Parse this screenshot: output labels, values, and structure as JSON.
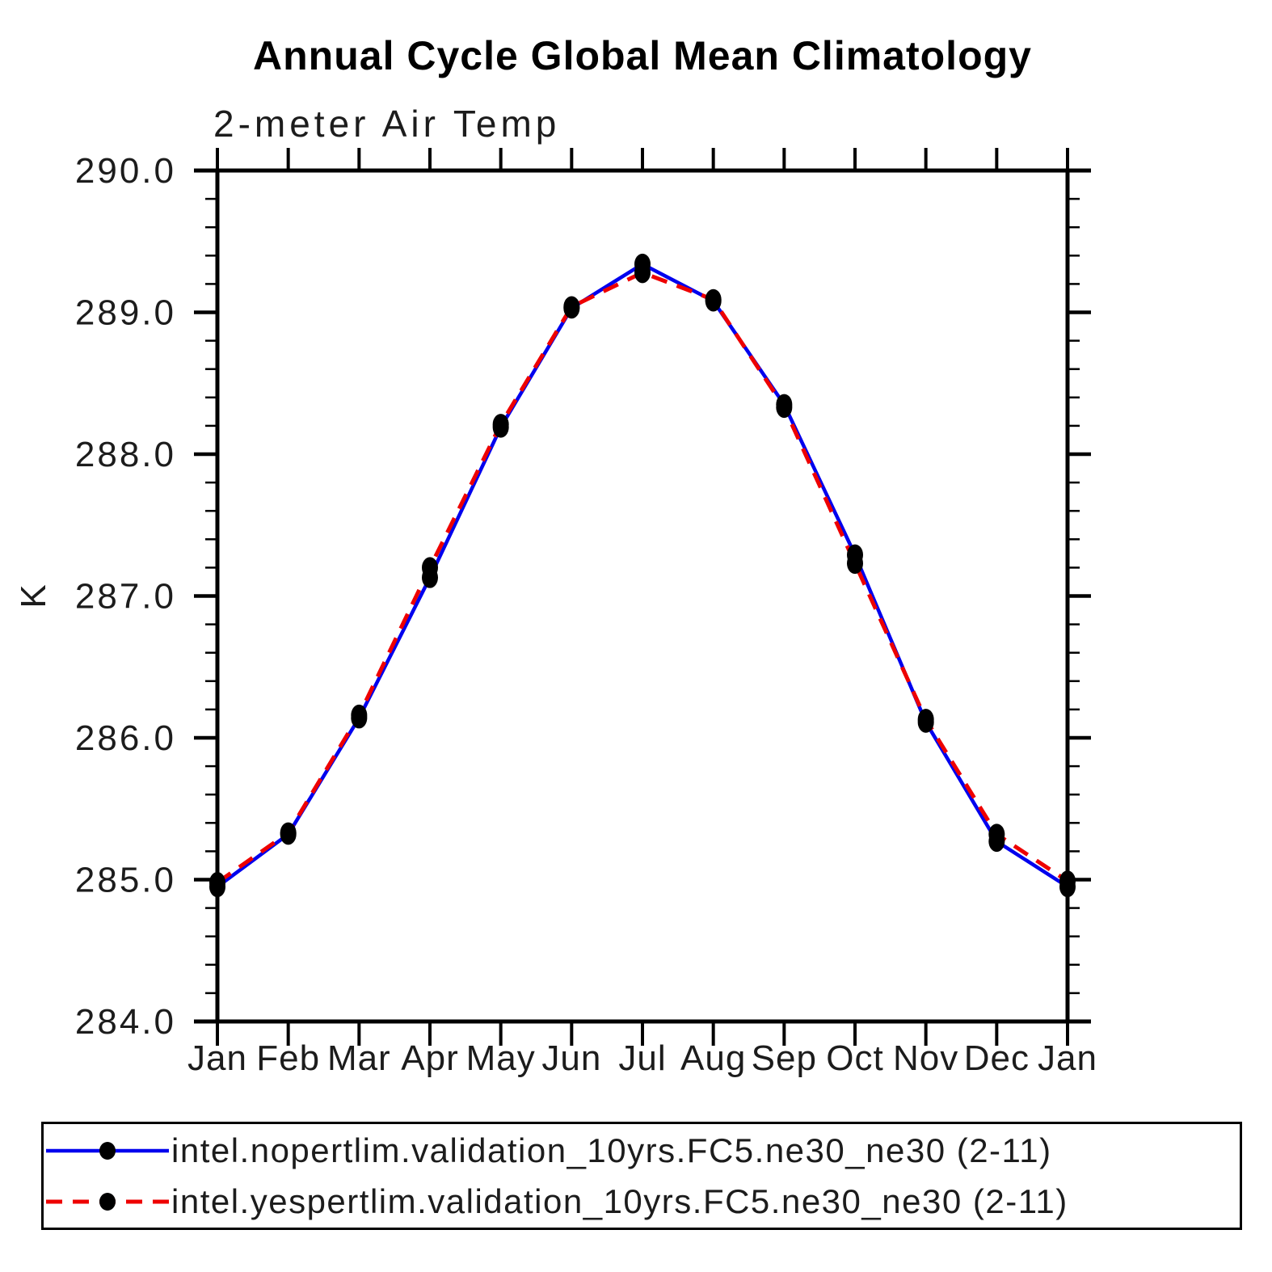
{
  "title": "Annual Cycle Global Mean Climatology",
  "subtitle": "2-meter Air Temp",
  "chart_data": {
    "type": "line",
    "title": "Annual Cycle Global Mean Climatology",
    "subtitle": "2-meter Air Temp",
    "xlabel": "",
    "ylabel": "K",
    "categories": [
      "Jan",
      "Feb",
      "Mar",
      "Apr",
      "May",
      "Jun",
      "Jul",
      "Aug",
      "Sep",
      "Oct",
      "Nov",
      "Dec",
      "Jan"
    ],
    "ylim": [
      284.0,
      290.0
    ],
    "ytick_labels": [
      "284.0",
      "285.0",
      "286.0",
      "287.0",
      "288.0",
      "289.0",
      "290.0"
    ],
    "yminor_step": 0.2,
    "grid": false,
    "legend_position": "bottom",
    "axis_color": "#000000",
    "marker_color": "#000000",
    "series": [
      {
        "name": "intel.nopertlim.validation_10yrs.FC5.ne30_ne30 (2-11)",
        "color": "#0000ee",
        "style": "solid",
        "marker": "filled-circle",
        "values": [
          284.95,
          285.32,
          286.14,
          287.13,
          288.19,
          289.03,
          289.34,
          289.08,
          288.35,
          287.29,
          286.11,
          285.27,
          284.95
        ]
      },
      {
        "name": "intel.yespertlim.validation_10yrs.FC5.ne30_ne30 (2-11)",
        "color": "#ee0000",
        "style": "dashed",
        "marker": "filled-circle",
        "values": [
          284.98,
          285.33,
          286.16,
          287.2,
          288.21,
          289.04,
          289.28,
          289.09,
          288.33,
          287.23,
          286.13,
          285.32,
          284.99
        ]
      }
    ]
  }
}
